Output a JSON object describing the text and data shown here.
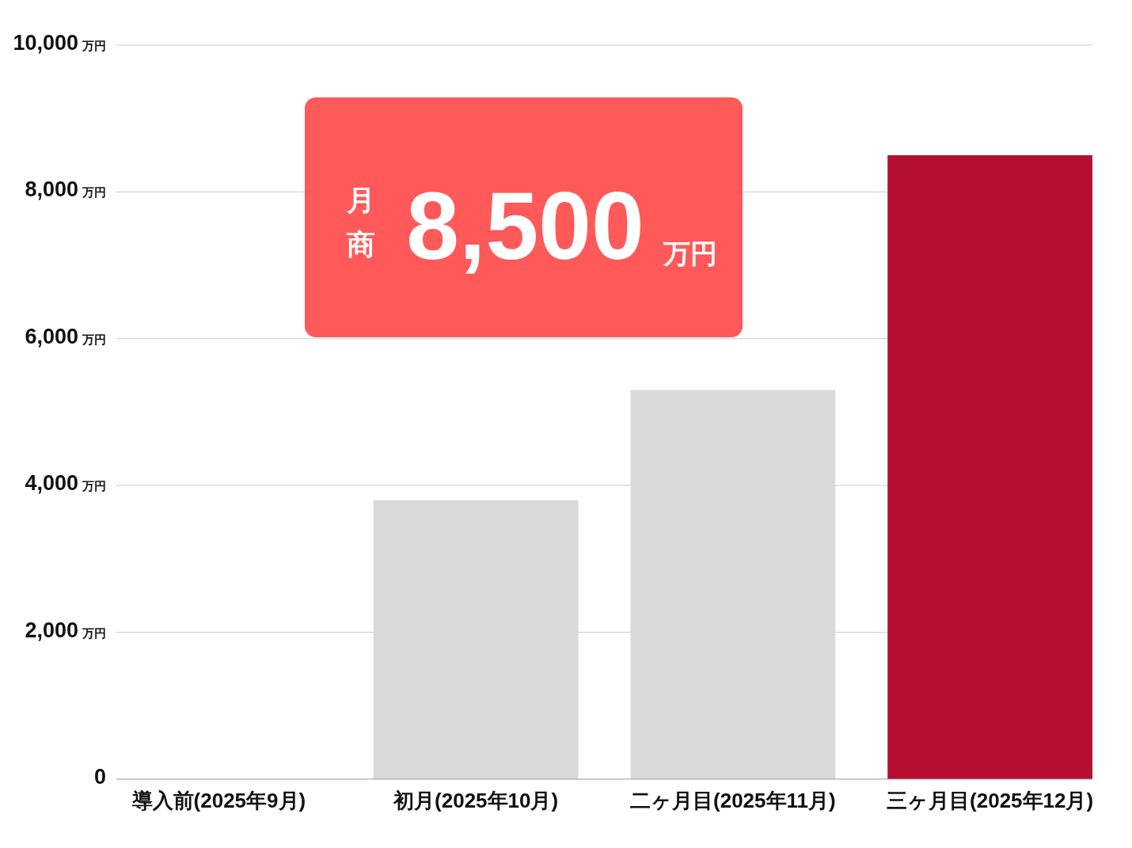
{
  "chart_data": {
    "type": "bar",
    "categories": [
      "導入前(2025年9月)",
      "初月(2025年10月)",
      "二ヶ月目(2025年11月)",
      "三ヶ月目(2025年12月)"
    ],
    "values": [
      0,
      3800,
      5300,
      8500
    ],
    "colors": [
      "#d9d9d9",
      "#d9d9d9",
      "#d9d9d9",
      "#b30f31"
    ],
    "ylim": [
      0,
      10000
    ],
    "yticks": [
      0,
      {
        "value": 2000,
        "label": "2,000 万円"
      },
      {
        "value": 4000,
        "label": "4,000 万円"
      },
      {
        "value": 6000,
        "label": "6,000 万円"
      },
      {
        "value": 8000,
        "label": "8,000 万円"
      },
      {
        "value": 10000,
        "label": "10,000 万円"
      }
    ],
    "grid": "y",
    "annotations": [
      "月商 8,500 万円"
    ]
  }
}
